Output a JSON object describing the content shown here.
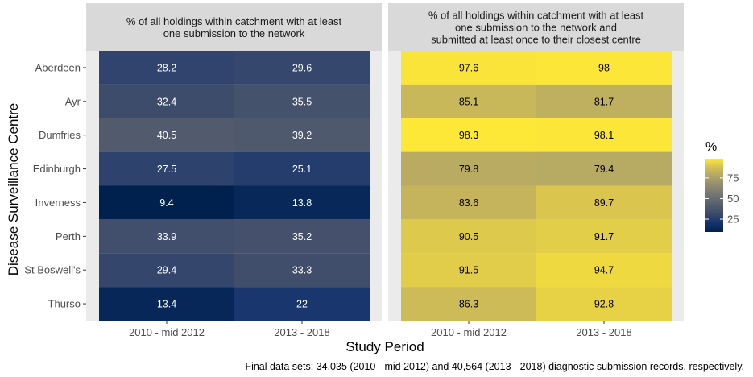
{
  "chart_data": {
    "type": "heatmap",
    "ylabel": "Disease Surveillance Centre",
    "xlabel": "Study Period",
    "caption": "Final data sets: 34,035 (2010 - mid 2012) and 40,564 (2013 - 2018) diagnostic submission records, respectively.",
    "categories": [
      "2010 - mid 2012",
      "2013 - 2018"
    ],
    "rows": [
      "Aberdeen",
      "Ayr",
      "Dumfries",
      "Edinburgh",
      "Inverness",
      "Perth",
      "St Boswell's",
      "Thurso"
    ],
    "panels": [
      {
        "title_lines": [
          "% of all holdings within catchment with at least",
          "one submission to the network"
        ],
        "values": [
          [
            28.2,
            29.6
          ],
          [
            32.4,
            35.5
          ],
          [
            40.5,
            39.2
          ],
          [
            27.5,
            25.1
          ],
          [
            9.4,
            13.8
          ],
          [
            33.9,
            35.2
          ],
          [
            29.4,
            33.3
          ],
          [
            13.4,
            22
          ]
        ]
      },
      {
        "title_lines": [
          "% of all holdings within catchment with at least",
          "one submission to the network and",
          "submitted at least once to their closest centre"
        ],
        "values": [
          [
            97.6,
            98
          ],
          [
            85.1,
            81.7
          ],
          [
            98.3,
            98.1
          ],
          [
            79.8,
            79.4
          ],
          [
            83.6,
            89.7
          ],
          [
            90.5,
            91.7
          ],
          [
            91.5,
            94.7
          ],
          [
            86.3,
            92.8
          ]
        ]
      }
    ],
    "legend": {
      "title": "%",
      "ticks": [
        25,
        50,
        75
      ],
      "range": [
        9.4,
        98.3
      ],
      "palette": "cividis"
    }
  }
}
